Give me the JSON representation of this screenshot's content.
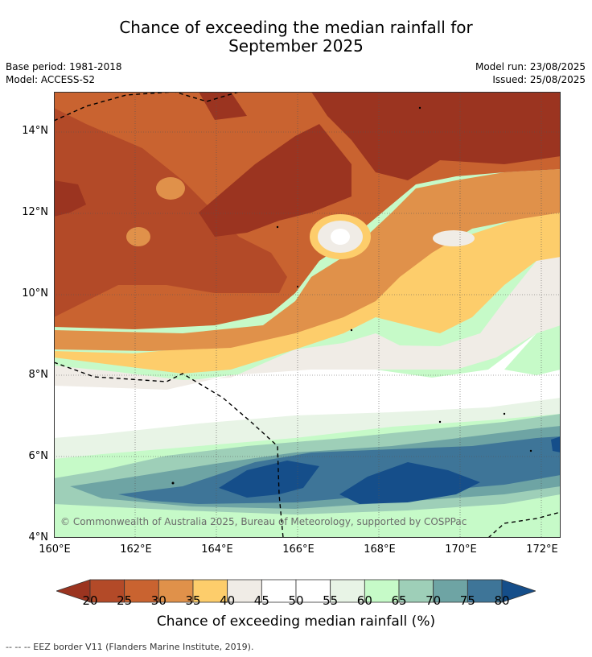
{
  "title_line1": "Chance of exceeding the median rainfall for",
  "title_line2": "September 2025",
  "base_period": "Base period: 1981-2018",
  "model": "Model: ACCESS-S2",
  "model_run": "Model run: 23/08/2025",
  "issued": "Issued: 25/08/2025",
  "lat_labels": [
    "14°N",
    "12°N",
    "10°N",
    "8°N",
    "6°N",
    "4°N"
  ],
  "lon_labels": [
    "160°E",
    "162°E",
    "164°E",
    "166°E",
    "168°E",
    "170°E",
    "172°E"
  ],
  "copyright": "© Commonwealth of Australia 2025, Bureau of Meteorology, supported by COSPPac",
  "colorbar": {
    "ticks": [
      "20",
      "25",
      "30",
      "35",
      "40",
      "45",
      "50",
      "55",
      "60",
      "65",
      "70",
      "75",
      "80"
    ],
    "colors": [
      "#9b3420",
      "#b34a28",
      "#c96330",
      "#e0914a",
      "#fdcd6b",
      "#f0ece6",
      "#ffffff",
      "#ffffff",
      "#e8f4e6",
      "#c6fac8",
      "#9ecfb8",
      "#6ea4a4",
      "#3e7598",
      "#154e8a"
    ],
    "title": "Chance of exceeding median rainfall (%)"
  },
  "footer": "--  --  -- EEZ border V11 (Flanders Marine Institute, 2019)."
}
